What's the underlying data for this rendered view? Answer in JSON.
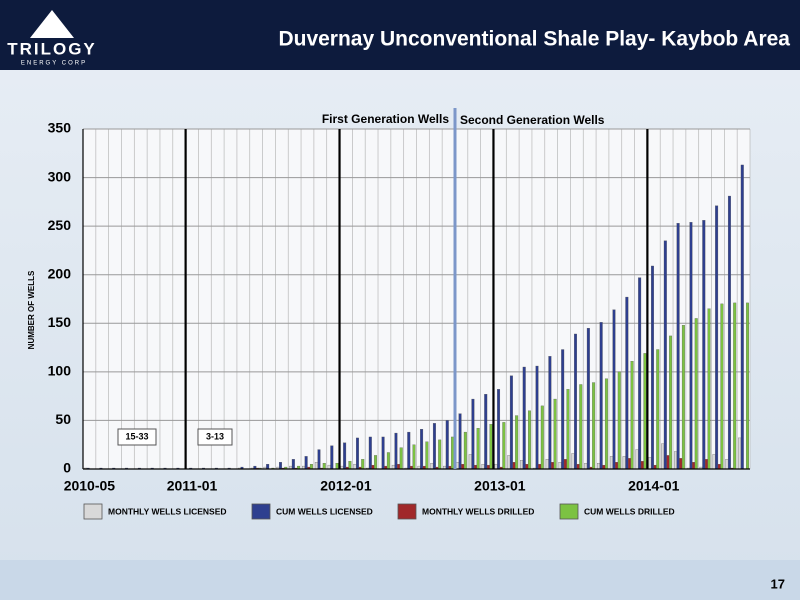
{
  "header": {
    "logo": "TRILOGY",
    "logo_sub": "ENERGY CORP",
    "title": "Duvernay Unconventional Shale Play- Kaybob Area"
  },
  "page_number": "17",
  "chart_data": {
    "type": "bar",
    "ylabel": "NUMBER OF WELLS",
    "annotations": [
      "First Generation Wells",
      "Second Generation Wells",
      "15-33",
      "3-13"
    ],
    "categories": [
      "2010-05",
      null,
      null,
      null,
      null,
      null,
      null,
      null,
      "2011-01",
      null,
      null,
      null,
      null,
      null,
      null,
      null,
      null,
      null,
      null,
      null,
      "2012-01",
      null,
      null,
      null,
      null,
      null,
      null,
      null,
      null,
      null,
      null,
      null,
      "2013-01",
      null,
      null,
      null,
      null,
      null,
      null,
      null,
      null,
      null,
      null,
      null,
      "2014-01",
      null,
      null,
      null,
      null,
      null,
      null,
      null
    ],
    "series": [
      {
        "name": "MONTHLY WELLS LICENSED",
        "color": "#d9d9d9",
        "values": [
          1,
          0,
          0,
          0,
          0,
          0,
          0,
          0,
          0,
          0,
          0,
          0,
          1,
          1,
          2,
          2,
          3,
          3,
          7,
          4,
          3,
          5,
          1,
          0,
          4,
          1,
          3,
          6,
          3,
          7,
          15,
          5,
          5,
          14,
          9,
          1,
          10,
          7,
          16,
          6,
          6,
          13,
          13,
          20,
          12,
          26,
          18,
          1,
          2,
          15,
          10,
          32
        ]
      },
      {
        "name": "CUM WELLS LICENSED",
        "color": "#2e3f8f",
        "values": [
          1,
          1,
          1,
          1,
          1,
          1,
          1,
          1,
          1,
          1,
          1,
          1,
          2,
          3,
          5,
          7,
          10,
          13,
          20,
          24,
          27,
          32,
          33,
          33,
          37,
          38,
          41,
          47,
          50,
          57,
          72,
          77,
          82,
          96,
          105,
          106,
          116,
          123,
          139,
          145,
          151,
          164,
          177,
          197,
          209,
          235,
          253,
          254,
          256,
          271,
          281,
          313
        ]
      },
      {
        "name": "MONTHLY WELLS DRILLED",
        "color": "#a0282a",
        "values": [
          0,
          0,
          0,
          0,
          0,
          0,
          0,
          0,
          0,
          0,
          0,
          0,
          0,
          1,
          0,
          1,
          1,
          2,
          1,
          0,
          2,
          2,
          4,
          3,
          5,
          3,
          3,
          2,
          3,
          5,
          4,
          4,
          2,
          7,
          5,
          5,
          7,
          10,
          5,
          2,
          4,
          7,
          11,
          8,
          4,
          14,
          11,
          7,
          10,
          5,
          1,
          0
        ]
      },
      {
        "name": "CUM WELLS DRILLED",
        "color": "#7cc242",
        "values": [
          0,
          0,
          0,
          0,
          0,
          0,
          0,
          0,
          0,
          0,
          0,
          0,
          0,
          1,
          1,
          2,
          3,
          5,
          6,
          6,
          8,
          10,
          14,
          17,
          22,
          25,
          28,
          30,
          33,
          38,
          42,
          46,
          48,
          55,
          60,
          65,
          72,
          82,
          87,
          89,
          93,
          100,
          111,
          119,
          123,
          137,
          148,
          155,
          165,
          170,
          171,
          171
        ]
      }
    ],
    "ylim": [
      0,
      350
    ],
    "yticks": [
      0,
      50,
      100,
      150,
      200,
      250,
      300,
      350
    ],
    "grid": true
  }
}
